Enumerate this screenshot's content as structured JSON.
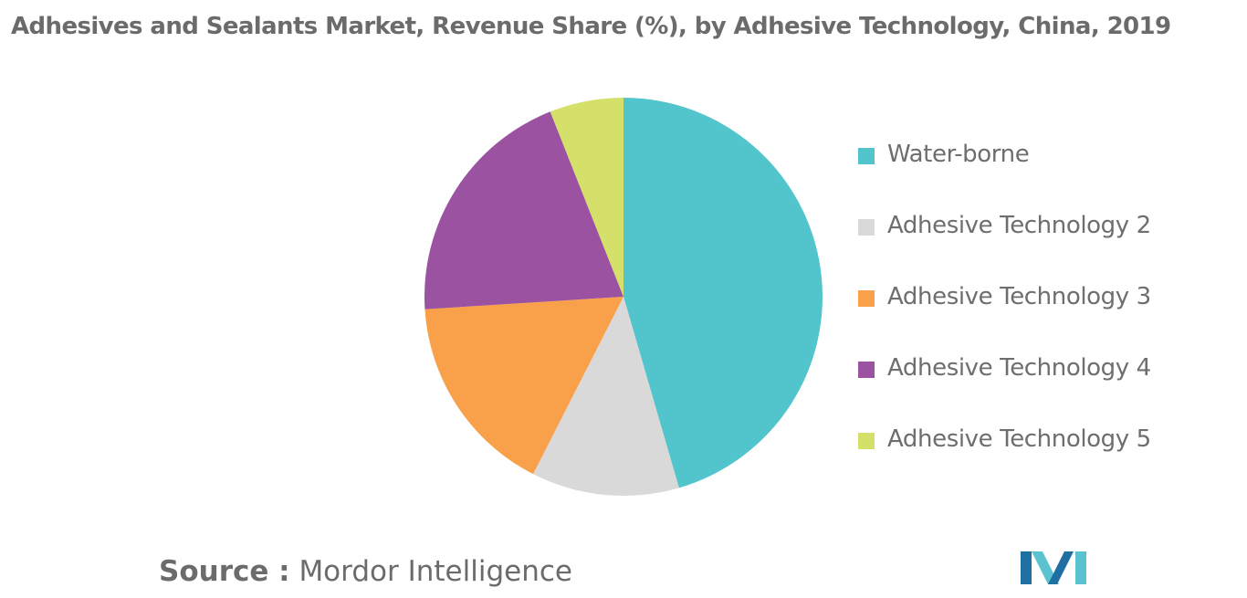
{
  "chart_data": {
    "type": "pie",
    "title": "Adhesives and Sealants Market, Revenue Share (%), by Adhesive Technology, China, 2019",
    "categories": [
      "Water-borne",
      "Adhesive Technology 2",
      "Adhesive Technology 3",
      "Adhesive Technology 4",
      "Adhesive Technology 5"
    ],
    "values": [
      45.5,
      12,
      16.5,
      20,
      6
    ],
    "colors": [
      "#52c4cb",
      "#d9d9d9",
      "#f9a04a",
      "#9b52a0",
      "#d4e06a"
    ],
    "start_angle_deg": 0,
    "direction": "clockwise",
    "legend_position": "right"
  },
  "source": {
    "label": "Source :",
    "text": "Mordor Intelligence"
  },
  "logo": {
    "icon": "mordor-intelligence-logo-icon",
    "colors": [
      "#1f6fa3",
      "#5bc3cf"
    ]
  }
}
